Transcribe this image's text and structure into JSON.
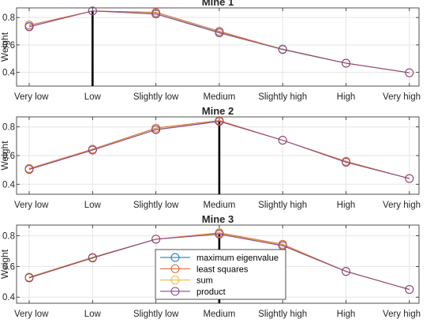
{
  "chart_data": [
    {
      "type": "line",
      "title": "Mine 1",
      "ylabel": "Weight",
      "xlabel": "",
      "categories": [
        "Very low",
        "Low",
        "Slightly low",
        "Medium",
        "Slightly high",
        "High",
        "Very high"
      ],
      "ylim": [
        0.3,
        0.87
      ],
      "yticks": [
        "0.4",
        "0.6",
        "0.8"
      ],
      "grid": true,
      "marker": "circle",
      "reference_category": "Low",
      "series": [
        {
          "name": "maximum eigenvalue",
          "values": [
            0.735,
            0.848,
            0.83,
            0.692,
            0.57,
            0.467,
            0.397
          ]
        },
        {
          "name": "least squares",
          "values": [
            0.745,
            0.848,
            0.838,
            0.7,
            0.567,
            0.467,
            0.397
          ]
        },
        {
          "name": "sum",
          "values": [
            0.733,
            0.848,
            0.828,
            0.69,
            0.568,
            0.467,
            0.397
          ]
        },
        {
          "name": "product",
          "values": [
            0.732,
            0.848,
            0.825,
            0.688,
            0.566,
            0.467,
            0.397
          ]
        }
      ]
    },
    {
      "type": "line",
      "title": "Mine 2",
      "ylabel": "Weight",
      "xlabel": "",
      "categories": [
        "Very low",
        "Low",
        "Slightly low",
        "Medium",
        "Slightly high",
        "High",
        "Very high"
      ],
      "ylim": [
        0.33,
        0.87
      ],
      "yticks": [
        "0.4",
        "0.6",
        "0.8"
      ],
      "grid": true,
      "marker": "circle",
      "reference_category": "Medium",
      "series": [
        {
          "name": "maximum eigenvalue",
          "values": [
            0.505,
            0.64,
            0.783,
            0.84,
            0.707,
            0.555,
            0.44
          ]
        },
        {
          "name": "least squares",
          "values": [
            0.51,
            0.645,
            0.792,
            0.845,
            0.707,
            0.56,
            0.44
          ]
        },
        {
          "name": "sum",
          "values": [
            0.505,
            0.64,
            0.783,
            0.84,
            0.707,
            0.555,
            0.44
          ]
        },
        {
          "name": "product",
          "values": [
            0.503,
            0.638,
            0.78,
            0.838,
            0.707,
            0.553,
            0.44
          ]
        }
      ]
    },
    {
      "type": "line",
      "title": "Mine 3",
      "ylabel": "Weight",
      "xlabel": "",
      "categories": [
        "Very low",
        "Low",
        "Slightly low",
        "Medium",
        "Slightly high",
        "High",
        "Very high"
      ],
      "ylim": [
        0.36,
        0.87
      ],
      "yticks": [
        "0.4",
        "0.6",
        "0.8"
      ],
      "grid": true,
      "marker": "circle",
      "reference_category": "Medium",
      "legend_position": "bottom-center",
      "series": [
        {
          "name": "maximum eigenvalue",
          "values": [
            0.53,
            0.66,
            0.778,
            0.815,
            0.738,
            0.568,
            0.45
          ]
        },
        {
          "name": "least squares",
          "values": [
            0.525,
            0.655,
            0.778,
            0.82,
            0.745,
            0.568,
            0.45
          ]
        },
        {
          "name": "sum",
          "values": [
            0.53,
            0.66,
            0.778,
            0.815,
            0.738,
            0.568,
            0.45
          ]
        },
        {
          "name": "product",
          "values": [
            0.527,
            0.656,
            0.778,
            0.81,
            0.735,
            0.568,
            0.45
          ]
        }
      ]
    }
  ],
  "colors": {
    "maximum eigenvalue": "#0072BD",
    "least squares": "#D95319",
    "sum": "#EDB120",
    "product": "#7E2F8E",
    "axis": "#262626",
    "grid": "#e5e5e5",
    "reference_line": "#000000"
  },
  "legend": {
    "entries": [
      "maximum eigenvalue",
      "least squares",
      "sum",
      "product"
    ]
  }
}
